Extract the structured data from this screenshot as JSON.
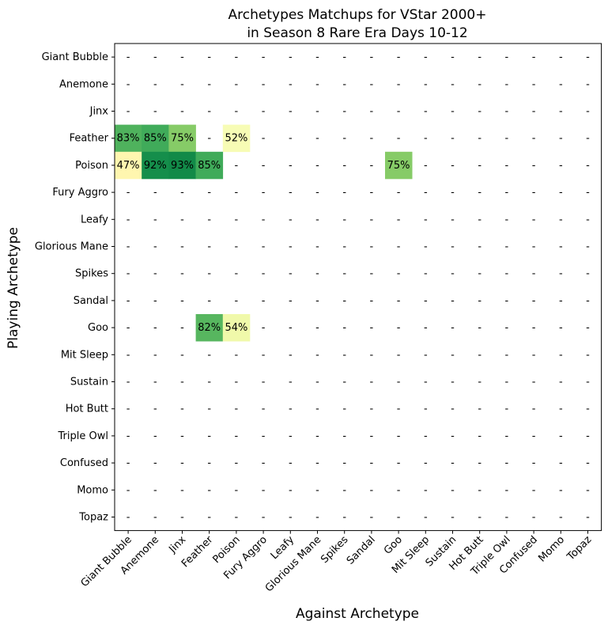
{
  "chart_data": {
    "type": "heatmap",
    "title_line1": "Archetypes Matchups for VStar 2000+",
    "title_line2": "in Season 8 Rare Era Days 10-12",
    "xlabel": "Against Archetype",
    "ylabel": "Playing Archetype",
    "rows": [
      "Giant Bubble",
      "Anemone",
      "Jinx",
      "Feather",
      "Poison",
      "Fury Aggro",
      "Leafy",
      "Glorious Mane",
      "Spikes",
      "Sandal",
      "Goo",
      "Mit Sleep",
      "Sustain",
      "Hot Butt",
      "Triple Owl",
      "Confused",
      "Momo",
      "Topaz"
    ],
    "columns": [
      "Giant Bubble",
      "Anemone",
      "Jinx",
      "Feather",
      "Poison",
      "Fury Aggro",
      "Leafy",
      "Glorious Mane",
      "Spikes",
      "Sandal",
      "Goo",
      "Mit Sleep",
      "Sustain",
      "Hot Butt",
      "Triple Owl",
      "Confused",
      "Momo",
      "Topaz"
    ],
    "empty_label": "-",
    "values": [
      [
        null,
        null,
        null,
        null,
        null,
        null,
        null,
        null,
        null,
        null,
        null,
        null,
        null,
        null,
        null,
        null,
        null,
        null
      ],
      [
        null,
        null,
        null,
        null,
        null,
        null,
        null,
        null,
        null,
        null,
        null,
        null,
        null,
        null,
        null,
        null,
        null,
        null
      ],
      [
        null,
        null,
        null,
        null,
        null,
        null,
        null,
        null,
        null,
        null,
        null,
        null,
        null,
        null,
        null,
        null,
        null,
        null
      ],
      [
        83,
        85,
        75,
        null,
        52,
        null,
        null,
        null,
        null,
        null,
        null,
        null,
        null,
        null,
        null,
        null,
        null,
        null
      ],
      [
        47,
        92,
        93,
        85,
        null,
        null,
        null,
        null,
        null,
        null,
        75,
        null,
        null,
        null,
        null,
        null,
        null,
        null
      ],
      [
        null,
        null,
        null,
        null,
        null,
        null,
        null,
        null,
        null,
        null,
        null,
        null,
        null,
        null,
        null,
        null,
        null,
        null
      ],
      [
        null,
        null,
        null,
        null,
        null,
        null,
        null,
        null,
        null,
        null,
        null,
        null,
        null,
        null,
        null,
        null,
        null,
        null
      ],
      [
        null,
        null,
        null,
        null,
        null,
        null,
        null,
        null,
        null,
        null,
        null,
        null,
        null,
        null,
        null,
        null,
        null,
        null
      ],
      [
        null,
        null,
        null,
        null,
        null,
        null,
        null,
        null,
        null,
        null,
        null,
        null,
        null,
        null,
        null,
        null,
        null,
        null
      ],
      [
        null,
        null,
        null,
        null,
        null,
        null,
        null,
        null,
        null,
        null,
        null,
        null,
        null,
        null,
        null,
        null,
        null,
        null
      ],
      [
        null,
        null,
        null,
        82,
        54,
        null,
        null,
        null,
        null,
        null,
        null,
        null,
        null,
        null,
        null,
        null,
        null,
        null
      ],
      [
        null,
        null,
        null,
        null,
        null,
        null,
        null,
        null,
        null,
        null,
        null,
        null,
        null,
        null,
        null,
        null,
        null,
        null
      ],
      [
        null,
        null,
        null,
        null,
        null,
        null,
        null,
        null,
        null,
        null,
        null,
        null,
        null,
        null,
        null,
        null,
        null,
        null
      ],
      [
        null,
        null,
        null,
        null,
        null,
        null,
        null,
        null,
        null,
        null,
        null,
        null,
        null,
        null,
        null,
        null,
        null,
        null
      ],
      [
        null,
        null,
        null,
        null,
        null,
        null,
        null,
        null,
        null,
        null,
        null,
        null,
        null,
        null,
        null,
        null,
        null,
        null
      ],
      [
        null,
        null,
        null,
        null,
        null,
        null,
        null,
        null,
        null,
        null,
        null,
        null,
        null,
        null,
        null,
        null,
        null,
        null
      ],
      [
        null,
        null,
        null,
        null,
        null,
        null,
        null,
        null,
        null,
        null,
        null,
        null,
        null,
        null,
        null,
        null,
        null,
        null
      ],
      [
        null,
        null,
        null,
        null,
        null,
        null,
        null,
        null,
        null,
        null,
        null,
        null,
        null,
        null,
        null,
        null,
        null,
        null
      ]
    ],
    "value_suffix": "%",
    "colormap": "RdYlGn",
    "color_range": [
      0,
      100
    ]
  }
}
